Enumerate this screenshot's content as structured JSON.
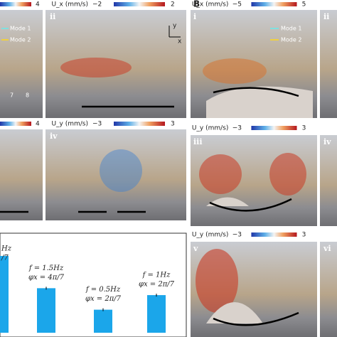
{
  "figure": {
    "panel_b_label": "B",
    "colorbars": [
      {
        "max": "4"
      },
      {
        "label": "U_x (mm/s)",
        "min": "−2",
        "max": "2"
      },
      {
        "label": "U_x (mm/s)",
        "min": "−5",
        "max": "5"
      },
      {
        "max": "4"
      },
      {
        "label": "U_y (mm/s)",
        "min": "−3",
        "max": "3"
      },
      {
        "label": "U_y (mm/s)",
        "min": "−3",
        "max": "3"
      },
      {
        "label": "U_y (mm/s)",
        "min": "−3",
        "max": "3"
      }
    ],
    "numerals": [
      "ii",
      "i",
      "ii",
      "iv",
      "iii",
      "iv",
      "v",
      "vi"
    ],
    "legends": [
      {
        "mode1": "Mode 1",
        "mode2": "Mode 2"
      },
      {
        "mode1": "Mode 1",
        "mode2": "Mode 2"
      }
    ],
    "axis_glyph": {
      "y": "y",
      "x": "x"
    },
    "segment_labels": [
      "7",
      "8"
    ]
  },
  "chart_data": {
    "type": "bar",
    "color": "#1ba6ea",
    "values": [
      100,
      58,
      30,
      49
    ],
    "annotations": [
      {
        "f": "Hz",
        "phi": "/7"
      },
      {
        "f": "f = 1.5Hz",
        "phi": "φx = 4π/7"
      },
      {
        "f": "f = 0.5Hz",
        "phi": "φx = 2π/7"
      },
      {
        "f": "f = 1Hz",
        "phi": "φx = 2π/7"
      }
    ]
  }
}
